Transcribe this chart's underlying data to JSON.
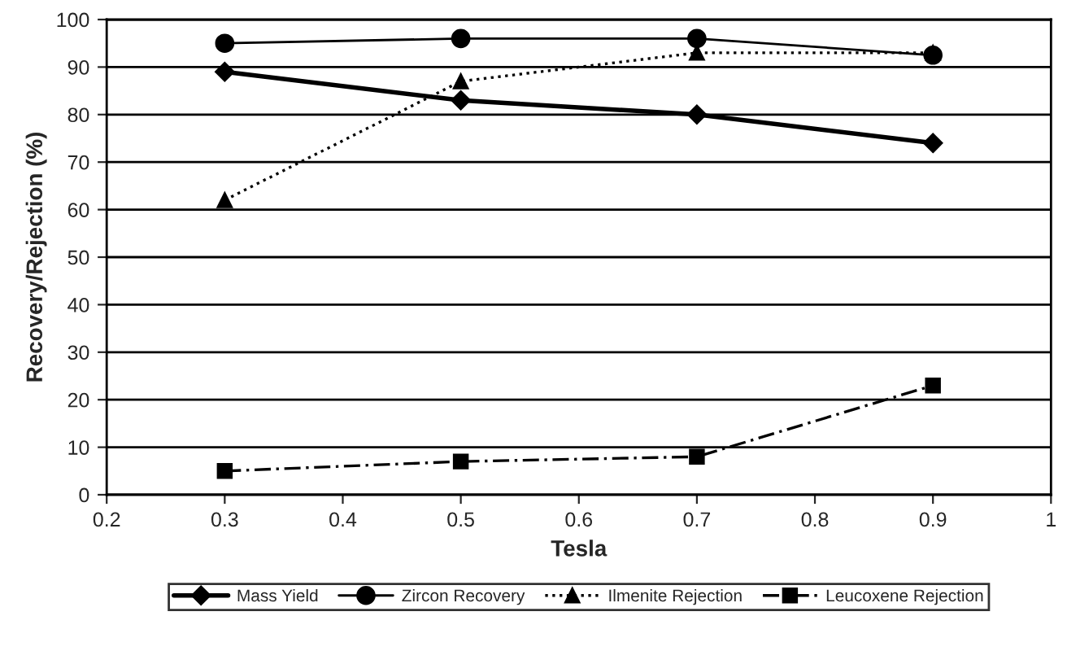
{
  "chart_data": {
    "type": "line",
    "xlabel": "Tesla",
    "ylabel": "Recovery/Rejection (%)",
    "x": [
      0.3,
      0.5,
      0.7,
      0.9
    ],
    "xlim": [
      0.2,
      1
    ],
    "xticks": [
      0.2,
      0.3,
      0.4,
      0.5,
      0.6,
      0.7,
      0.8,
      0.9,
      1
    ],
    "ylim": [
      0,
      100
    ],
    "yticks": [
      0,
      10,
      20,
      30,
      40,
      50,
      60,
      70,
      80,
      90,
      100
    ],
    "grid": "y",
    "legend": "bottom",
    "series": [
      {
        "name": "Mass Yield",
        "color": "#000000",
        "marker": "diamond",
        "line_style": "solid",
        "values": [
          89,
          83,
          80,
          74
        ]
      },
      {
        "name": "Zircon Recovery",
        "color": "#000000",
        "marker": "circle",
        "line_style": "solid",
        "values": [
          95,
          96,
          96,
          92.5
        ]
      },
      {
        "name": "Ilmenite Rejection",
        "color": "#000000",
        "marker": "triangle",
        "line_style": "dotted",
        "values": [
          62,
          87,
          93,
          93
        ]
      },
      {
        "name": "Leucoxene Rejection",
        "color": "#000000",
        "marker": "square",
        "line_style": "dashed",
        "values": [
          5,
          7,
          8,
          23
        ]
      }
    ]
  }
}
